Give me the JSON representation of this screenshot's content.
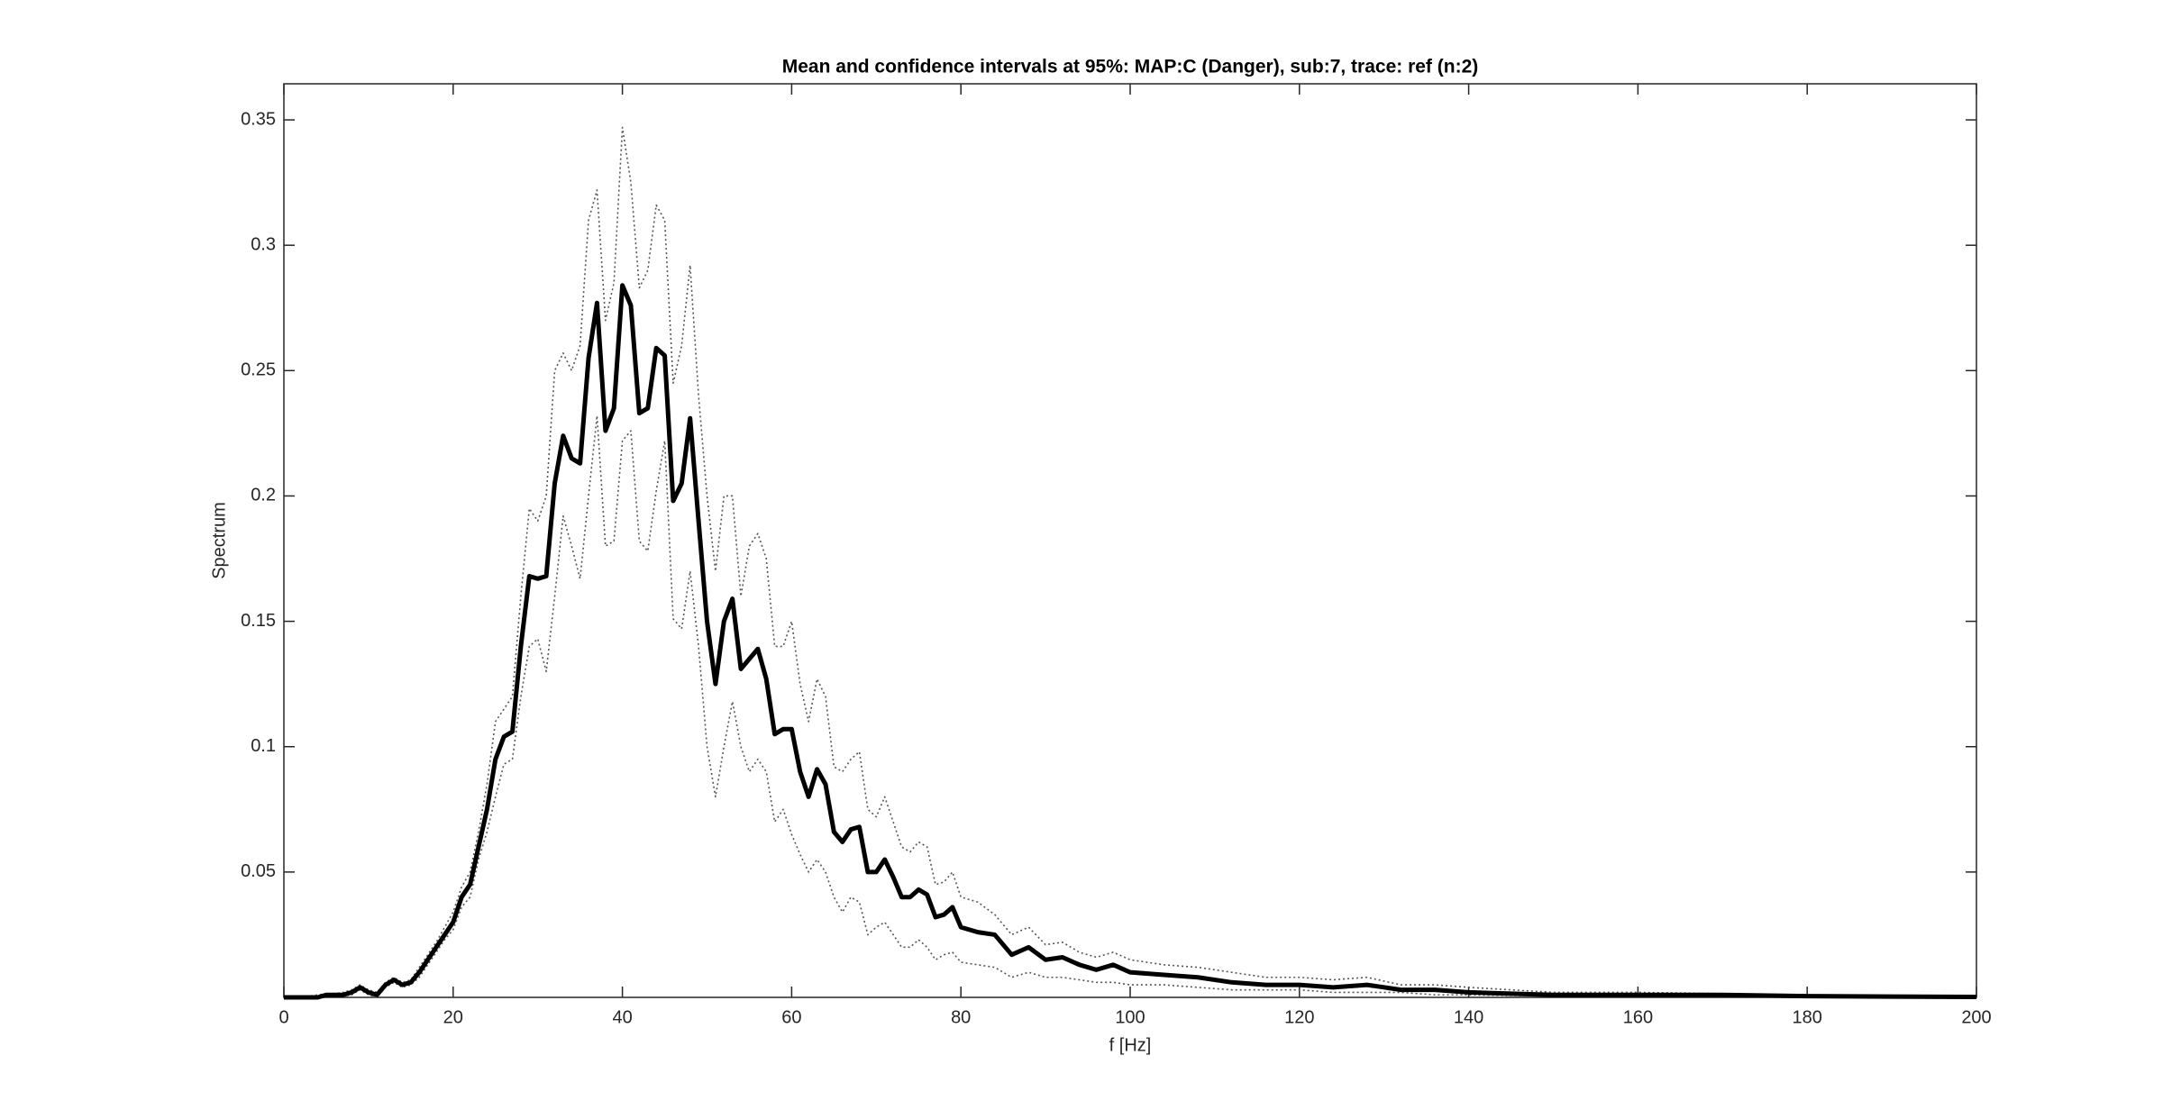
{
  "chart_data": {
    "type": "line",
    "title": "Mean and confidence intervals at 95%: MAP:C (Danger), sub:7, trace: ref (n:2)",
    "xlabel": "f [Hz]",
    "ylabel": "Spectrum",
    "x": [
      0,
      1,
      2,
      3,
      4,
      5,
      6,
      7,
      8,
      9,
      10,
      11,
      12,
      13,
      14,
      15,
      16,
      17,
      18,
      19,
      20,
      21,
      22,
      23,
      24,
      25,
      26,
      27,
      28,
      29,
      30,
      31,
      32,
      33,
      34,
      35,
      36,
      37,
      38,
      39,
      40,
      41,
      42,
      43,
      44,
      45,
      46,
      47,
      48,
      49,
      50,
      51,
      52,
      53,
      54,
      55,
      56,
      57,
      58,
      59,
      60,
      61,
      62,
      63,
      64,
      65,
      66,
      67,
      68,
      69,
      70,
      71,
      72,
      73,
      74,
      75,
      76,
      77,
      78,
      79,
      80,
      82,
      84,
      86,
      88,
      90,
      92,
      94,
      96,
      98,
      100,
      104,
      108,
      112,
      116,
      120,
      124,
      128,
      132,
      136,
      140,
      150,
      160,
      170,
      180,
      190,
      200
    ],
    "series": [
      {
        "color": "#555555",
        "line_style": "dotted",
        "values": [
          0.0005,
          0.0005,
          0.0005,
          0.0005,
          0.001,
          0.0015,
          0.0015,
          0.002,
          0.003,
          0.005,
          0.003,
          0.002,
          0.006,
          0.008,
          0.006,
          0.007,
          0.012,
          0.017,
          0.022,
          0.028,
          0.034,
          0.044,
          0.05,
          0.066,
          0.085,
          0.11,
          0.115,
          0.12,
          0.16,
          0.195,
          0.19,
          0.2,
          0.25,
          0.257,
          0.25,
          0.26,
          0.31,
          0.322,
          0.27,
          0.285,
          0.347,
          0.325,
          0.283,
          0.29,
          0.316,
          0.31,
          0.245,
          0.26,
          0.292,
          0.24,
          0.2,
          0.17,
          0.2,
          0.2,
          0.16,
          0.18,
          0.185,
          0.175,
          0.14,
          0.14,
          0.15,
          0.125,
          0.11,
          0.127,
          0.12,
          0.092,
          0.09,
          0.095,
          0.098,
          0.075,
          0.072,
          0.08,
          0.07,
          0.06,
          0.058,
          0.062,
          0.06,
          0.045,
          0.046,
          0.05,
          0.04,
          0.038,
          0.033,
          0.025,
          0.028,
          0.021,
          0.022,
          0.018,
          0.016,
          0.018,
          0.015,
          0.013,
          0.012,
          0.01,
          0.008,
          0.008,
          0.007,
          0.008,
          0.005,
          0.005,
          0.004,
          0.002,
          0.002,
          0.0015,
          0.001,
          0.0005,
          0.0003
        ]
      },
      {
        "color": "#555555",
        "line_style": "dotted",
        "values": [
          0,
          0,
          0,
          0,
          0,
          0.0005,
          0.0005,
          0.0005,
          0.001,
          0.003,
          0.001,
          0,
          0.004,
          0.006,
          0.004,
          0.005,
          0.008,
          0.013,
          0.018,
          0.023,
          0.027,
          0.036,
          0.04,
          0.055,
          0.066,
          0.08,
          0.093,
          0.095,
          0.12,
          0.14,
          0.143,
          0.13,
          0.16,
          0.192,
          0.18,
          0.167,
          0.2,
          0.232,
          0.18,
          0.182,
          0.222,
          0.226,
          0.182,
          0.178,
          0.202,
          0.222,
          0.151,
          0.147,
          0.17,
          0.14,
          0.1,
          0.08,
          0.1,
          0.118,
          0.1,
          0.09,
          0.095,
          0.09,
          0.07,
          0.075,
          0.065,
          0.057,
          0.05,
          0.055,
          0.05,
          0.04,
          0.034,
          0.04,
          0.038,
          0.025,
          0.028,
          0.03,
          0.025,
          0.02,
          0.02,
          0.023,
          0.02,
          0.015,
          0.017,
          0.018,
          0.014,
          0.013,
          0.012,
          0.008,
          0.01,
          0.008,
          0.008,
          0.007,
          0.006,
          0.006,
          0.005,
          0.005,
          0.004,
          0.003,
          0.003,
          0.003,
          0.002,
          0.002,
          0.002,
          0.001,
          0.001,
          0.0005,
          0.0004,
          0.0004,
          0.0002,
          0.0001,
          0.0001
        ]
      },
      {
        "color": "#000000",
        "line_style": "solid",
        "values": [
          0,
          0,
          0,
          0,
          0,
          0.001,
          0.001,
          0.001,
          0.002,
          0.004,
          0.002,
          0.001,
          0.005,
          0.007,
          0.005,
          0.006,
          0.01,
          0.015,
          0.02,
          0.025,
          0.03,
          0.04,
          0.045,
          0.06,
          0.075,
          0.095,
          0.104,
          0.106,
          0.14,
          0.168,
          0.167,
          0.168,
          0.205,
          0.224,
          0.215,
          0.213,
          0.255,
          0.277,
          0.226,
          0.235,
          0.284,
          0.276,
          0.233,
          0.235,
          0.259,
          0.256,
          0.198,
          0.205,
          0.231,
          0.19,
          0.15,
          0.125,
          0.15,
          0.159,
          0.131,
          0.135,
          0.139,
          0.127,
          0.105,
          0.107,
          0.107,
          0.09,
          0.08,
          0.091,
          0.085,
          0.066,
          0.062,
          0.067,
          0.068,
          0.05,
          0.05,
          0.055,
          0.048,
          0.04,
          0.04,
          0.043,
          0.041,
          0.032,
          0.033,
          0.036,
          0.028,
          0.026,
          0.025,
          0.017,
          0.02,
          0.015,
          0.016,
          0.013,
          0.011,
          0.013,
          0.01,
          0.009,
          0.008,
          0.006,
          0.005,
          0.005,
          0.004,
          0.005,
          0.003,
          0.003,
          0.002,
          0.001,
          0.001,
          0.001,
          0.0005,
          0.0003,
          0.0002
        ]
      }
    ],
    "xlim": [
      0,
      200
    ],
    "xticks": [
      0,
      20,
      40,
      60,
      80,
      100,
      120,
      140,
      160,
      180,
      200
    ],
    "ylim": [
      0,
      0.3644
    ],
    "yticks": [
      0.05,
      0.1,
      0.15,
      0.2,
      0.25,
      0.3,
      0.35
    ],
    "grid": false
  }
}
